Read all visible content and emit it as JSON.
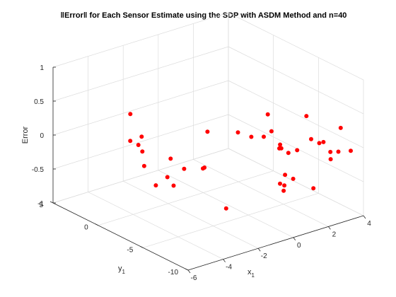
{
  "chart_data": {
    "type": "scatter3d",
    "title": "‖Error‖ for Each Sensor Estimate using the SDP with ASDM Method and n=40",
    "xlabel": "x",
    "xlabel_sub": "1",
    "ylabel": "y",
    "ylabel_sub": "1",
    "zlabel": "Error",
    "xlim": [
      -6,
      4
    ],
    "ylim": [
      -10,
      5
    ],
    "zlim": [
      -1,
      1
    ],
    "x_ticks": [
      -6,
      -4,
      -2,
      0,
      2,
      4
    ],
    "y_ticks": [
      -10,
      -5,
      0,
      5
    ],
    "z_ticks": [
      -1,
      -0.5,
      0,
      0.5,
      1
    ],
    "x_tick_labels": [
      "-6",
      "-4",
      "-2",
      "0",
      "2",
      "4"
    ],
    "y_tick_labels": [
      "-10",
      "-5",
      "0",
      "5"
    ],
    "z_tick_labels": [
      "-1",
      "-0.5",
      "0",
      "0.5",
      "1"
    ],
    "grid": true,
    "marker_color": "#ff0000",
    "points": [
      {
        "x": -1.8,
        "y": 4.6,
        "z": 0.0
      },
      {
        "x": -3.0,
        "y": 1.0,
        "z": 0.0
      },
      {
        "x": -3.7,
        "y": 0.0,
        "z": 0.0
      },
      {
        "x": -3.7,
        "y": 0.9,
        "z": 0.0
      },
      {
        "x": -4.5,
        "y": -2.0,
        "z": 0.1
      },
      {
        "x": -1.3,
        "y": -3.0,
        "z": 0.2
      },
      {
        "x": -4.5,
        "y": -2.2,
        "z": -0.1
      },
      {
        "x": -3.3,
        "y": -2.8,
        "z": -0.05
      },
      {
        "x": -3.3,
        "y": -4.3,
        "z": -0.1
      },
      {
        "x": -4.0,
        "y": -3.8,
        "z": -0.2
      },
      {
        "x": -3.9,
        "y": -4.3,
        "z": -0.3
      },
      {
        "x": -4.5,
        "y": -3.5,
        "z": -0.3
      },
      {
        "x": -3.1,
        "y": -6.0,
        "z": 0.0
      },
      {
        "x": -2.5,
        "y": -5.0,
        "z": -0.1
      },
      {
        "x": -1.0,
        "y": -5.8,
        "z": 0.35
      },
      {
        "x": -0.6,
        "y": -6.5,
        "z": 0.3
      },
      {
        "x": -0.4,
        "y": -7.5,
        "z": 0.35
      },
      {
        "x": -2.7,
        "y": -7.8,
        "z": -0.5
      },
      {
        "x": 0.6,
        "y": -6.0,
        "z": 0.5
      },
      {
        "x": 0.5,
        "y": -6.6,
        "z": 0.3
      },
      {
        "x": 0.6,
        "y": -7.5,
        "z": 0.1
      },
      {
        "x": 1.0,
        "y": -6.5,
        "z": 0.0
      },
      {
        "x": 1.0,
        "y": -7.5,
        "z": 0.0
      },
      {
        "x": 1.3,
        "y": -6.0,
        "z": 0.0
      },
      {
        "x": 1.5,
        "y": -7.5,
        "z": 0.0
      },
      {
        "x": 0.3,
        "y": -8.5,
        "z": -0.2
      },
      {
        "x": 0.0,
        "y": -9.0,
        "z": -0.3
      },
      {
        "x": -0.5,
        "y": -9.5,
        "z": -0.2
      },
      {
        "x": -0.4,
        "y": -9.7,
        "z": -0.3
      },
      {
        "x": 0.3,
        "y": -9.4,
        "z": -0.2
      },
      {
        "x": 1.3,
        "y": -9.7,
        "z": -0.4
      },
      {
        "x": 2.3,
        "y": -8.4,
        "z": 0.1
      },
      {
        "x": 2.3,
        "y": -7.5,
        "z": 0.1
      },
      {
        "x": 2.8,
        "y": -6.0,
        "z": 0.3
      },
      {
        "x": 3.0,
        "y": -7.5,
        "z": 0.0
      },
      {
        "x": 3.0,
        "y": -8.3,
        "z": -0.2
      },
      {
        "x": 3.5,
        "y": -7.3,
        "z": -0.2
      },
      {
        "x": 3.8,
        "y": -7.6,
        "z": -0.2
      },
      {
        "x": 4.3,
        "y": -8.0,
        "z": -0.2
      },
      {
        "x": 4.6,
        "y": -6.3,
        "z": 0.0
      }
    ]
  }
}
